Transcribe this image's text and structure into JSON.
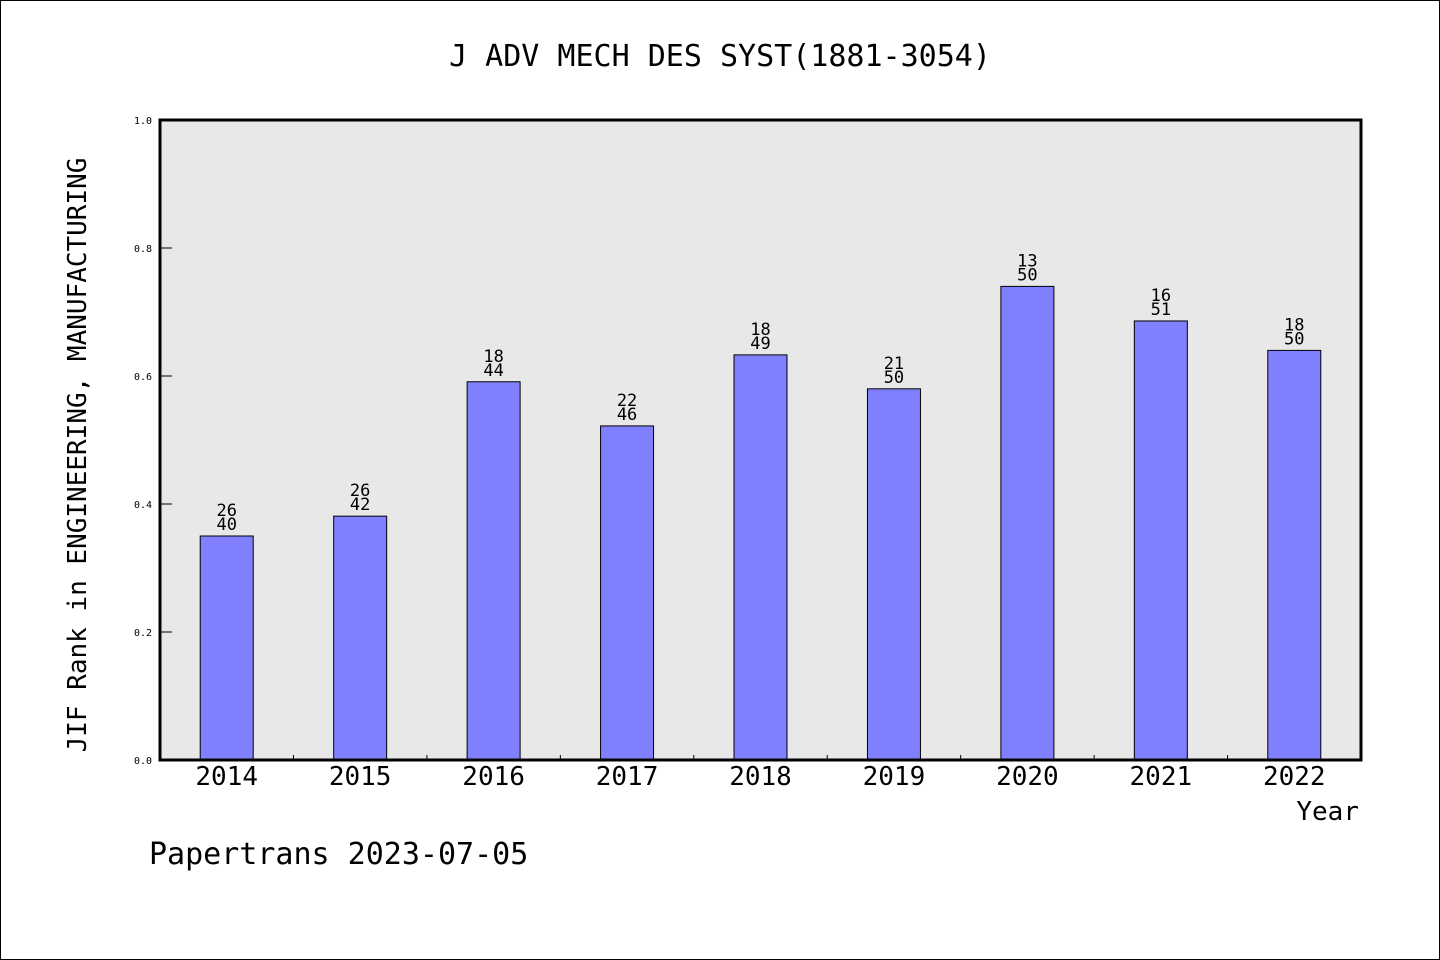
{
  "chart_data": {
    "type": "bar",
    "title": "J ADV MECH DES SYST(1881-3054)",
    "xlabel": "Year",
    "ylabel": "JIF Rank in ENGINEERING, MANUFACTURING",
    "ylim": [
      0.0,
      1.0
    ],
    "yticks": [
      "0.0",
      "0.2",
      "0.4",
      "0.6",
      "0.8",
      "1.0"
    ],
    "categories": [
      "2014",
      "2015",
      "2016",
      "2017",
      "2018",
      "2019",
      "2020",
      "2021",
      "2022"
    ],
    "values": [
      0.35,
      0.381,
      0.591,
      0.522,
      0.633,
      0.58,
      0.74,
      0.686,
      0.64
    ],
    "bar_labels": [
      {
        "rank": "26",
        "total": "40"
      },
      {
        "rank": "26",
        "total": "42"
      },
      {
        "rank": "18",
        "total": "44"
      },
      {
        "rank": "22",
        "total": "46"
      },
      {
        "rank": "18",
        "total": "49"
      },
      {
        "rank": "21",
        "total": "50"
      },
      {
        "rank": "13",
        "total": "50"
      },
      {
        "rank": "16",
        "total": "51"
      },
      {
        "rank": "18",
        "total": "50"
      }
    ],
    "grid": false,
    "colors": {
      "bar": "#8080ff",
      "plot_background": "#e8e8e8"
    }
  },
  "footer": {
    "credit": "Papertrans 2023-07-05"
  }
}
